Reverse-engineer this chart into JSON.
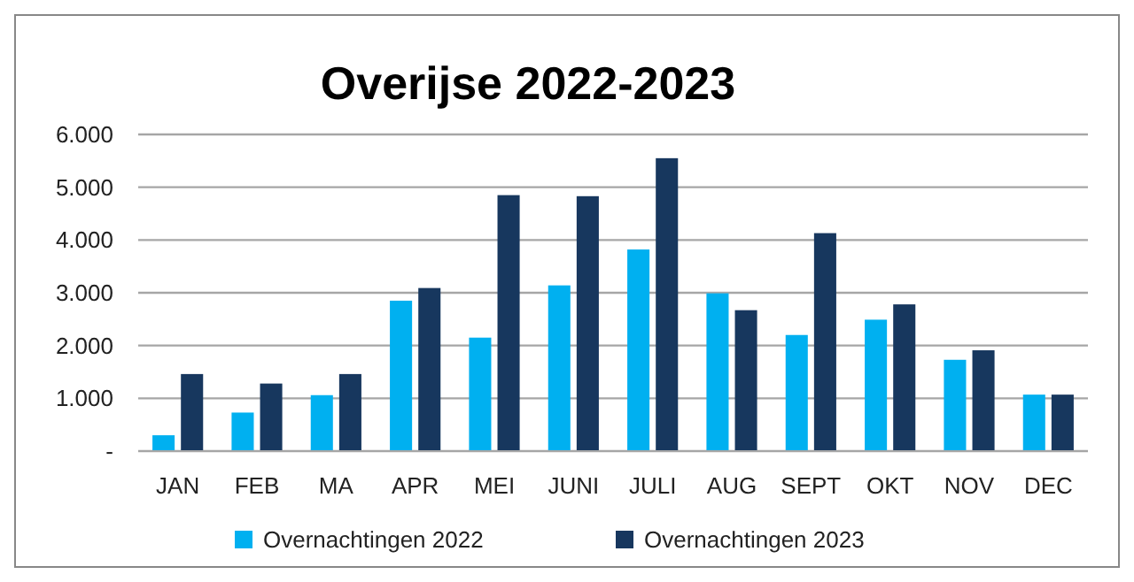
{
  "chart_data": {
    "type": "bar",
    "title": "Overijse 2022-2023",
    "categories": [
      "JAN",
      "FEB",
      "MA",
      "APR",
      "MEI",
      "JUNI",
      "JULI",
      "AUG",
      "SEPT",
      "OKT",
      "NOV",
      "DEC"
    ],
    "series": [
      {
        "name": "Overnachtingen 2022",
        "color": "#00b0f0",
        "values": [
          300,
          730,
          1060,
          2850,
          2150,
          3140,
          3820,
          2990,
          2200,
          2490,
          1730,
          1070
        ]
      },
      {
        "name": "Overnachtingen 2023",
        "color": "#17375e",
        "values": [
          1460,
          1280,
          1460,
          3090,
          4850,
          4830,
          5550,
          2670,
          4130,
          2780,
          1910,
          1070
        ]
      }
    ],
    "ylim": [
      0,
      6000
    ],
    "yticks": [
      {
        "value": 0,
        "label": "-"
      },
      {
        "value": 1000,
        "label": "1.000"
      },
      {
        "value": 2000,
        "label": "2.000"
      },
      {
        "value": 3000,
        "label": "3.000"
      },
      {
        "value": 4000,
        "label": "4.000"
      },
      {
        "value": 5000,
        "label": "5.000"
      },
      {
        "value": 6000,
        "label": "6.000"
      }
    ],
    "grid": "y",
    "legend": "bottom"
  }
}
